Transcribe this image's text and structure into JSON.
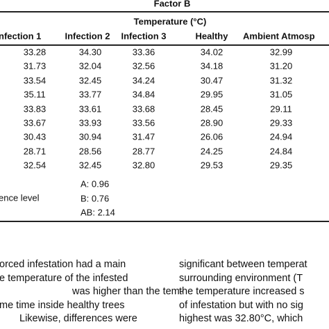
{
  "table": {
    "group_title": "Factor B",
    "subheader": "Temperature (°C)",
    "columns": [
      "nfection 1",
      "Infection 2",
      "Infection 3",
      "Healthy",
      "Ambient Atmosp"
    ],
    "rows": [
      [
        "33.28",
        "34.30",
        "33.36",
        "34.02",
        "32.99"
      ],
      [
        "31.73",
        "32.04",
        "32.56",
        "34.18",
        "31.20"
      ],
      [
        "33.54",
        "32.45",
        "34.24",
        "30.47",
        "31.32"
      ],
      [
        "35.11",
        "33.77",
        "34.84",
        "29.95",
        "31.05"
      ],
      [
        "33.83",
        "33.61",
        "33.68",
        "28.45",
        "29.11"
      ],
      [
        "33.67",
        "33.93",
        "33.56",
        "28.90",
        "29.33"
      ],
      [
        "30.43",
        "30.94",
        "31.47",
        "26.06",
        "24.94"
      ],
      [
        "28.71",
        "28.56",
        "28.77",
        "24.25",
        "24.84"
      ],
      [
        "32.54",
        "32.45",
        "32.80",
        "29.53",
        "29.35"
      ]
    ],
    "lsd_label": "ence level",
    "lsd": [
      "A: 0.96",
      "B: 0.76",
      "AB: 2.14"
    ]
  },
  "body": {
    "left": [
      "orced infestation had a main",
      "e temperature of the infested",
      "was higher than the tem-",
      "me time inside healthy trees",
      "Likewise, differences were"
    ],
    "right": [
      "significant between temperat",
      "surrounding environment (T",
      "the temperature increased s",
      "of infestation but with no sig",
      "highest was 32.80°C, which"
    ]
  }
}
